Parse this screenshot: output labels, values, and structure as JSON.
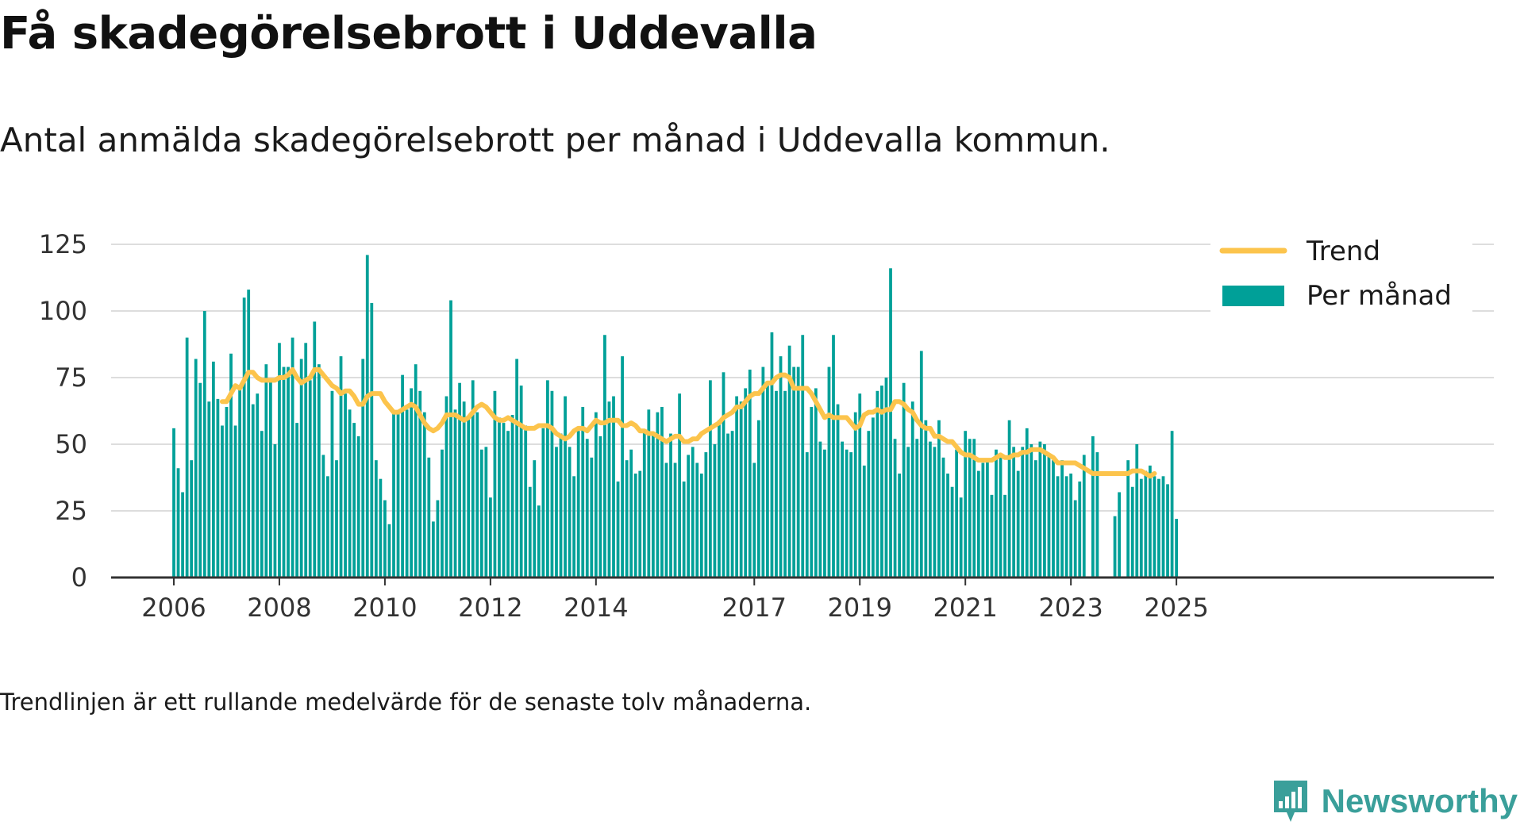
{
  "title": "Få skadegörelsebrott i Uddevalla",
  "subtitle": "Antal anmälda skadegörelsebrott per månad i Uddevalla kommun.",
  "footnote": "Trendlinjen är ett rullande medelvärde för de senaste tolv månaderna.",
  "brand": "Newsworthy",
  "colors": {
    "bars": "#00a098",
    "trend": "#fcc44c",
    "grid": "#dddddd",
    "axis": "#333333",
    "brand": "#3a9f9a"
  },
  "chart_data": {
    "type": "bar",
    "x_unit": "month",
    "x_start": "2006-01",
    "xticks": [
      "2006",
      "2008",
      "2010",
      "2012",
      "2014",
      "2017",
      "2019",
      "2021",
      "2023",
      "2025"
    ],
    "yticks": [
      0,
      25,
      50,
      75,
      100,
      125
    ],
    "ylim": [
      0,
      125
    ],
    "grid": true,
    "legend_position": "top-right",
    "series": [
      {
        "name": "Per månad",
        "kind": "bar",
        "values": [
          56,
          41,
          32,
          90,
          44,
          82,
          73,
          100,
          66,
          81,
          67,
          57,
          64,
          84,
          57,
          71,
          105,
          108,
          65,
          69,
          55,
          80,
          74,
          50,
          88,
          79,
          79,
          90,
          58,
          82,
          88,
          74,
          96,
          80,
          46,
          38,
          70,
          44,
          83,
          69,
          63,
          58,
          53,
          82,
          121,
          103,
          44,
          37,
          29,
          20,
          62,
          62,
          76,
          63,
          71,
          80,
          70,
          62,
          45,
          21,
          29,
          48,
          68,
          104,
          63,
          73,
          66,
          60,
          74,
          62,
          48,
          49,
          30,
          70,
          60,
          58,
          55,
          61,
          82,
          72,
          57,
          34,
          44,
          27,
          56,
          74,
          70,
          49,
          54,
          68,
          49,
          38,
          55,
          64,
          52,
          45,
          62,
          53,
          91,
          66,
          68,
          36,
          83,
          44,
          48,
          39,
          40,
          55,
          63,
          54,
          62,
          64,
          43,
          54,
          43,
          69,
          36,
          46,
          49,
          43,
          39,
          47,
          74,
          50,
          59,
          77,
          54,
          55,
          68,
          66,
          71,
          78,
          43,
          59,
          79,
          72,
          92,
          70,
          83,
          70,
          87,
          79,
          79,
          91,
          47,
          64,
          71,
          51,
          48,
          79,
          91,
          65,
          51,
          48,
          47,
          62,
          69,
          42,
          55,
          60,
          70,
          72,
          75,
          116,
          52,
          39,
          73,
          49,
          66,
          52,
          85,
          59,
          51,
          49,
          59,
          45,
          39,
          34,
          48,
          30,
          55,
          52,
          52,
          40,
          43,
          44,
          31,
          48,
          45,
          31,
          59,
          49,
          40,
          49,
          56,
          50,
          44,
          51,
          50,
          46,
          44,
          38,
          44,
          38,
          39,
          29,
          36,
          46,
          0,
          53,
          47,
          0,
          0,
          0,
          23,
          32,
          0,
          44,
          34,
          50,
          37,
          40,
          42,
          38,
          37,
          38,
          35,
          55,
          22
        ]
      },
      {
        "name": "Trend",
        "kind": "line",
        "start_index": 11,
        "values": [
          66,
          66,
          69,
          72,
          71,
          74,
          77,
          77,
          75,
          74,
          74,
          74,
          74,
          75,
          75,
          76,
          78,
          75,
          73,
          74,
          75,
          78,
          78,
          76,
          74,
          72,
          71,
          69,
          70,
          70,
          68,
          65,
          65,
          68,
          69,
          69,
          69,
          66,
          64,
          62,
          62,
          63,
          64,
          65,
          64,
          61,
          58,
          56,
          55,
          56,
          58,
          61,
          61,
          61,
          60,
          59,
          60,
          62,
          64,
          65,
          64,
          62,
          60,
          59,
          59,
          60,
          59,
          58,
          57,
          56,
          56,
          56,
          57,
          57,
          57,
          56,
          54,
          53,
          52,
          53,
          55,
          56,
          56,
          55,
          57,
          59,
          58,
          58,
          59,
          59,
          59,
          57,
          57,
          58,
          57,
          55,
          55,
          54,
          54,
          53,
          52,
          51,
          52,
          53,
          53,
          51,
          51,
          52,
          52,
          54,
          55,
          56,
          57,
          58,
          60,
          61,
          62,
          64,
          64,
          66,
          68,
          69,
          69,
          71,
          73,
          73,
          75,
          76,
          76,
          75,
          71,
          71,
          71,
          71,
          69,
          66,
          63,
          60,
          61,
          60,
          60,
          60,
          60,
          58,
          56,
          57,
          61,
          62,
          62,
          63,
          62,
          63,
          63,
          66,
          66,
          65,
          63,
          62,
          59,
          57,
          56,
          56,
          53,
          53,
          52,
          51,
          51,
          49,
          47,
          46,
          46,
          45,
          44,
          44,
          44,
          44,
          45,
          46,
          45,
          45,
          46,
          46,
          47,
          47,
          48,
          48,
          48,
          47,
          46,
          45,
          43,
          43,
          43,
          43,
          43,
          42,
          41,
          40,
          39,
          39,
          39,
          39,
          39,
          39,
          39,
          39,
          39,
          40,
          40,
          40,
          39,
          38,
          39
        ]
      }
    ]
  }
}
